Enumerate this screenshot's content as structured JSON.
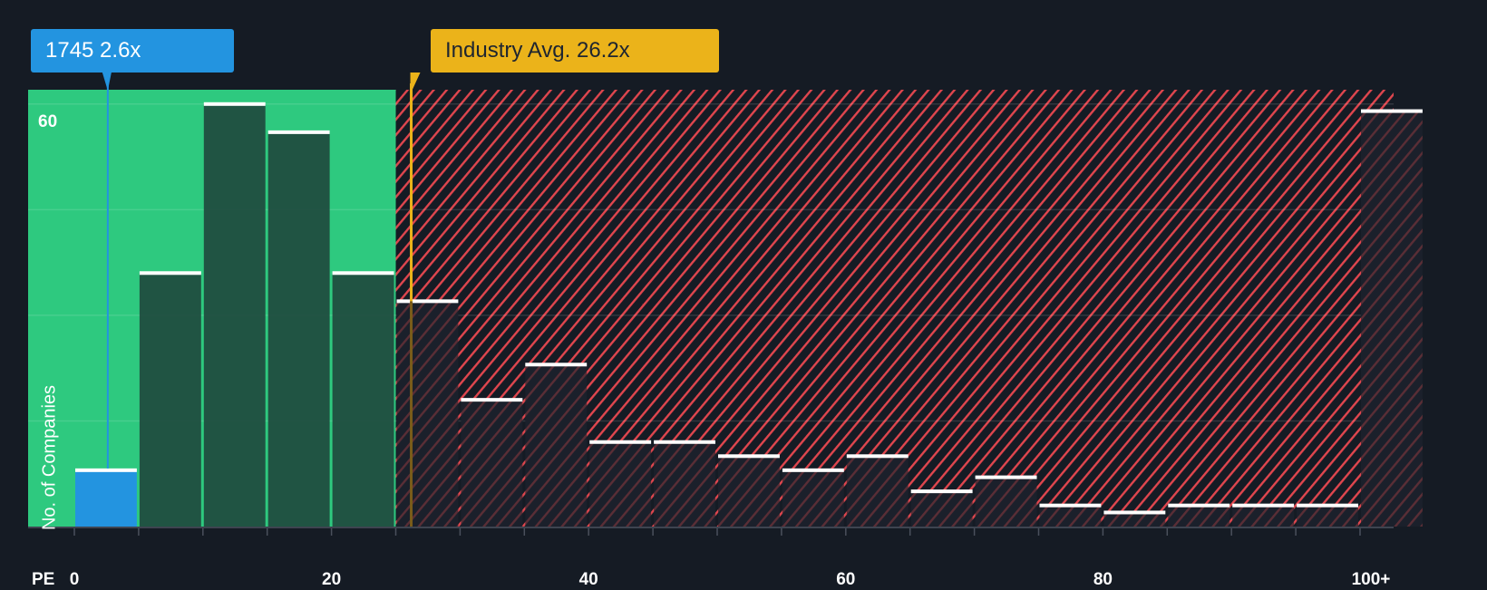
{
  "chart_data": {
    "type": "bar",
    "title": "",
    "xlabel": "PE",
    "ylabel": "No. of Companies",
    "x_tick_labels": [
      "0",
      "20",
      "40",
      "60",
      "80",
      "100+"
    ],
    "y_tick_labels": [
      "60"
    ],
    "ylim": [
      0,
      62
    ],
    "grid": true,
    "categories": [
      "0-5",
      "5-10",
      "10-15",
      "15-20",
      "20-25",
      "25-30",
      "30-35",
      "35-40",
      "40-45",
      "45-50",
      "50-55",
      "55-60",
      "60-65",
      "65-70",
      "70-75",
      "75-80",
      "80-85",
      "85-90",
      "90-95",
      "95-100",
      "100+"
    ],
    "values": [
      8,
      36,
      60,
      56,
      36,
      32,
      18,
      23,
      12,
      12,
      10,
      8,
      10,
      5,
      7,
      3,
      2,
      3,
      3,
      3,
      59
    ],
    "highlight_bin": "0-5",
    "company": {
      "label": "1745",
      "value": 2.6,
      "text": "1745 2.6x"
    },
    "industry_avg": {
      "value": 26.2,
      "text": "Industry Avg. 26.2x"
    },
    "regions": [
      {
        "name": "below-average",
        "from": 0,
        "to": 25,
        "color": "#2ec97f"
      },
      {
        "name": "above-average",
        "from": 25,
        "to": 105,
        "color": "#e0464e",
        "pattern": "diagonal-hatch"
      }
    ]
  },
  "colors": {
    "background": "#151b24",
    "green_region": "#2ec97f",
    "green_bar": "#1f4a3e",
    "company_bar": "#2394e0",
    "industry_line": "#ebb31a",
    "hatch": "#e0464e",
    "bar_cap": "#ffffff"
  },
  "labels": {
    "company_callout": "1745 2.6x",
    "industry_callout": "Industry Avg. 26.2x",
    "y_axis_title": "No. of Companies",
    "y_tick_60": "60",
    "x_axis_name": "PE",
    "x_ticks": [
      "0",
      "20",
      "40",
      "60",
      "80",
      "100+"
    ]
  }
}
